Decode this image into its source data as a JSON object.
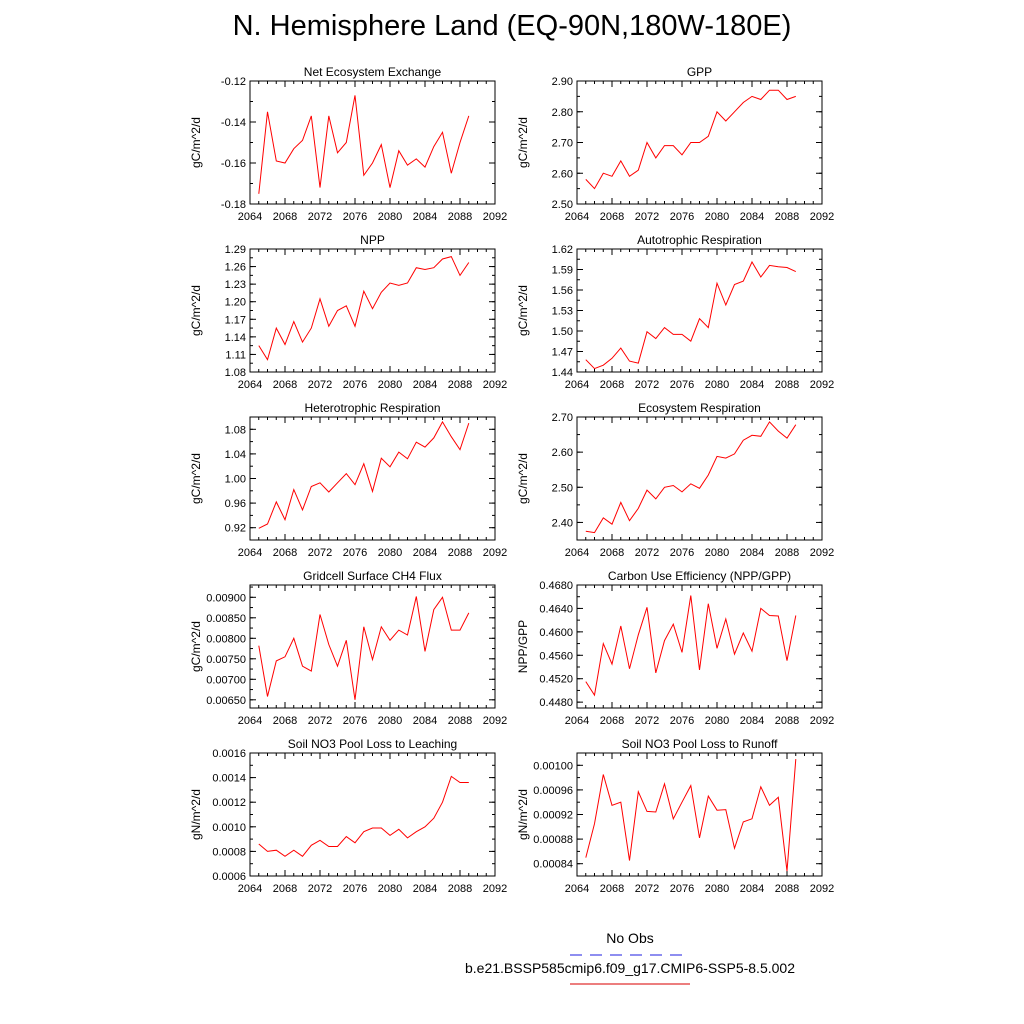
{
  "title": "N. Hemisphere Land (EQ-90N,180W-180E)",
  "legend": {
    "obs_label": "No Obs",
    "obs_color": "#4a4ae8",
    "run_label": "b.e21.BSSP585cmip6.f09_g17.CMIP6-SSP5-8.5.002",
    "run_color": "#e03030"
  },
  "chart_data": [
    {
      "type": "line",
      "title": "Net Ecosystem Exchange",
      "ylabel": "gC/m^2/d",
      "xlim": [
        2064,
        2092
      ],
      "x_ticks": [
        "2064",
        "2068",
        "2072",
        "2076",
        "2080",
        "2084",
        "2088",
        "2092"
      ],
      "ylim": [
        -0.18,
        -0.12
      ],
      "y_ticks": [
        -0.18,
        -0.16,
        -0.14,
        -0.12
      ],
      "y_tick_labels": [
        "-0.18",
        "-0.16",
        "-0.14",
        "-0.12"
      ],
      "series": [
        {
          "color": "#ff0000",
          "x": [
            2065,
            2066,
            2067,
            2068,
            2069,
            2070,
            2071,
            2072,
            2073,
            2074,
            2075,
            2076,
            2077,
            2078,
            2079,
            2080,
            2081,
            2082,
            2083,
            2084,
            2085,
            2086,
            2087,
            2088,
            2089
          ],
          "values": [
            -0.175,
            -0.135,
            -0.159,
            -0.16,
            -0.153,
            -0.149,
            -0.137,
            -0.172,
            -0.137,
            -0.155,
            -0.15,
            -0.127,
            -0.166,
            -0.16,
            -0.151,
            -0.172,
            -0.154,
            -0.161,
            -0.158,
            -0.162,
            -0.152,
            -0.145,
            -0.165,
            -0.15,
            -0.137
          ]
        }
      ]
    },
    {
      "type": "line",
      "title": "GPP",
      "ylabel": "gC/m^2/d",
      "xlim": [
        2064,
        2092
      ],
      "x_ticks": [
        "2064",
        "2068",
        "2072",
        "2076",
        "2080",
        "2084",
        "2088",
        "2092"
      ],
      "ylim": [
        2.5,
        2.9
      ],
      "y_ticks": [
        2.5,
        2.6,
        2.7,
        2.8,
        2.9
      ],
      "y_tick_labels": [
        "2.50",
        "2.60",
        "2.70",
        "2.80",
        "2.90"
      ],
      "series": [
        {
          "color": "#ff0000",
          "x": [
            2065,
            2066,
            2067,
            2068,
            2069,
            2070,
            2071,
            2072,
            2073,
            2074,
            2075,
            2076,
            2077,
            2078,
            2079,
            2080,
            2081,
            2082,
            2083,
            2084,
            2085,
            2086,
            2087,
            2088,
            2089
          ],
          "values": [
            2.58,
            2.55,
            2.6,
            2.59,
            2.64,
            2.59,
            2.61,
            2.7,
            2.65,
            2.69,
            2.69,
            2.66,
            2.7,
            2.7,
            2.72,
            2.8,
            2.77,
            2.8,
            2.83,
            2.85,
            2.84,
            2.87,
            2.87,
            2.84,
            2.85
          ]
        }
      ]
    },
    {
      "type": "line",
      "title": "NPP",
      "ylabel": "gC/m^2/d",
      "xlim": [
        2064,
        2092
      ],
      "x_ticks": [
        "2064",
        "2068",
        "2072",
        "2076",
        "2080",
        "2084",
        "2088",
        "2092"
      ],
      "ylim": [
        1.08,
        1.29
      ],
      "y_ticks": [
        1.08,
        1.11,
        1.14,
        1.17,
        1.2,
        1.23,
        1.26,
        1.29
      ],
      "y_tick_labels": [
        "1.08",
        "1.11",
        "1.14",
        "1.17",
        "1.20",
        "1.23",
        "1.26",
        "1.29"
      ],
      "series": [
        {
          "color": "#ff0000",
          "x": [
            2065,
            2066,
            2067,
            2068,
            2069,
            2070,
            2071,
            2072,
            2073,
            2074,
            2075,
            2076,
            2077,
            2078,
            2079,
            2080,
            2081,
            2082,
            2083,
            2084,
            2085,
            2086,
            2087,
            2088,
            2089
          ],
          "values": [
            1.125,
            1.101,
            1.155,
            1.127,
            1.166,
            1.131,
            1.155,
            1.205,
            1.158,
            1.185,
            1.193,
            1.158,
            1.218,
            1.188,
            1.216,
            1.232,
            1.228,
            1.232,
            1.258,
            1.255,
            1.258,
            1.273,
            1.277,
            1.245,
            1.267
          ]
        }
      ]
    },
    {
      "type": "line",
      "title": "Autotrophic Respiration",
      "ylabel": "gC/m^2/d",
      "xlim": [
        2064,
        2092
      ],
      "x_ticks": [
        "2064",
        "2068",
        "2072",
        "2076",
        "2080",
        "2084",
        "2088",
        "2092"
      ],
      "ylim": [
        1.44,
        1.62
      ],
      "y_ticks": [
        1.44,
        1.47,
        1.5,
        1.53,
        1.56,
        1.59,
        1.62
      ],
      "y_tick_labels": [
        "1.44",
        "1.47",
        "1.50",
        "1.53",
        "1.56",
        "1.59",
        "1.62"
      ],
      "series": [
        {
          "color": "#ff0000",
          "x": [
            2065,
            2066,
            2067,
            2068,
            2069,
            2070,
            2071,
            2072,
            2073,
            2074,
            2075,
            2076,
            2077,
            2078,
            2079,
            2080,
            2081,
            2082,
            2083,
            2084,
            2085,
            2086,
            2087,
            2088,
            2089
          ],
          "values": [
            1.458,
            1.445,
            1.45,
            1.46,
            1.475,
            1.456,
            1.453,
            1.499,
            1.489,
            1.505,
            1.495,
            1.495,
            1.485,
            1.518,
            1.505,
            1.57,
            1.538,
            1.568,
            1.573,
            1.601,
            1.579,
            1.596,
            1.594,
            1.593,
            1.587
          ]
        }
      ]
    },
    {
      "type": "line",
      "title": "Heterotrophic Respiration",
      "ylabel": "gC/m^2/d",
      "xlim": [
        2064,
        2092
      ],
      "x_ticks": [
        "2064",
        "2068",
        "2072",
        "2076",
        "2080",
        "2084",
        "2088",
        "2092"
      ],
      "ylim": [
        0.9,
        1.1
      ],
      "y_ticks": [
        0.92,
        0.96,
        1.0,
        1.04,
        1.08
      ],
      "y_tick_labels": [
        "0.92",
        "0.96",
        "1.00",
        "1.04",
        "1.08"
      ],
      "series": [
        {
          "color": "#ff0000",
          "x": [
            2065,
            2066,
            2067,
            2068,
            2069,
            2070,
            2071,
            2072,
            2073,
            2074,
            2075,
            2076,
            2077,
            2078,
            2079,
            2080,
            2081,
            2082,
            2083,
            2084,
            2085,
            2086,
            2087,
            2088,
            2089
          ],
          "values": [
            0.919,
            0.926,
            0.962,
            0.933,
            0.982,
            0.949,
            0.987,
            0.993,
            0.978,
            0.993,
            1.008,
            0.99,
            1.024,
            0.979,
            1.033,
            1.019,
            1.043,
            1.032,
            1.059,
            1.051,
            1.066,
            1.092,
            1.068,
            1.047,
            1.09
          ]
        }
      ]
    },
    {
      "type": "line",
      "title": "Ecosystem Respiration",
      "ylabel": "gC/m^2/d",
      "xlim": [
        2064,
        2092
      ],
      "x_ticks": [
        "2064",
        "2068",
        "2072",
        "2076",
        "2080",
        "2084",
        "2088",
        "2092"
      ],
      "ylim": [
        2.35,
        2.7
      ],
      "y_ticks": [
        2.4,
        2.5,
        2.6,
        2.7
      ],
      "y_tick_labels": [
        "2.40",
        "2.50",
        "2.60",
        "2.70"
      ],
      "series": [
        {
          "color": "#ff0000",
          "x": [
            2065,
            2066,
            2067,
            2068,
            2069,
            2070,
            2071,
            2072,
            2073,
            2074,
            2075,
            2076,
            2077,
            2078,
            2079,
            2080,
            2081,
            2082,
            2083,
            2084,
            2085,
            2086,
            2087,
            2088,
            2089
          ],
          "values": [
            2.375,
            2.371,
            2.413,
            2.395,
            2.457,
            2.405,
            2.44,
            2.492,
            2.467,
            2.5,
            2.505,
            2.487,
            2.51,
            2.497,
            2.535,
            2.588,
            2.583,
            2.595,
            2.634,
            2.648,
            2.645,
            2.686,
            2.66,
            2.64,
            2.678
          ]
        }
      ]
    },
    {
      "type": "line",
      "title": "Gridcell Surface CH4 Flux",
      "ylabel": "gC/m^2/d",
      "xlim": [
        2064,
        2092
      ],
      "x_ticks": [
        "2064",
        "2068",
        "2072",
        "2076",
        "2080",
        "2084",
        "2088",
        "2092"
      ],
      "ylim": [
        0.0063,
        0.0093
      ],
      "y_ticks": [
        0.0065,
        0.007,
        0.0075,
        0.008,
        0.0085,
        0.009
      ],
      "y_tick_labels": [
        "0.00650",
        "0.00700",
        "0.00750",
        "0.00800",
        "0.00850",
        "0.00900"
      ],
      "series": [
        {
          "color": "#ff0000",
          "x": [
            2065,
            2066,
            2067,
            2068,
            2069,
            2070,
            2071,
            2072,
            2073,
            2074,
            2075,
            2076,
            2077,
            2078,
            2079,
            2080,
            2081,
            2082,
            2083,
            2084,
            2085,
            2086,
            2087,
            2088,
            2089
          ],
          "values": [
            0.00782,
            0.00658,
            0.00745,
            0.00755,
            0.008,
            0.00732,
            0.0072,
            0.00858,
            0.00785,
            0.00732,
            0.00795,
            0.0065,
            0.00828,
            0.00748,
            0.00828,
            0.00795,
            0.0082,
            0.00808,
            0.00902,
            0.00768,
            0.0087,
            0.009,
            0.0082,
            0.0082,
            0.00862
          ]
        }
      ]
    },
    {
      "type": "line",
      "title": "Carbon Use Efficiency (NPP/GPP)",
      "ylabel": "NPP/GPP",
      "xlim": [
        2064,
        2092
      ],
      "x_ticks": [
        "2064",
        "2068",
        "2072",
        "2076",
        "2080",
        "2084",
        "2088",
        "2092"
      ],
      "ylim": [
        0.447,
        0.468
      ],
      "y_ticks": [
        0.448,
        0.452,
        0.456,
        0.46,
        0.464,
        0.468
      ],
      "y_tick_labels": [
        "0.4480",
        "0.4520",
        "0.4560",
        "0.4600",
        "0.4640",
        "0.4680"
      ],
      "series": [
        {
          "color": "#ff0000",
          "x": [
            2065,
            2066,
            2067,
            2068,
            2069,
            2070,
            2071,
            2072,
            2073,
            2074,
            2075,
            2076,
            2077,
            2078,
            2079,
            2080,
            2081,
            2082,
            2083,
            2084,
            2085,
            2086,
            2087,
            2088,
            2089
          ],
          "values": [
            0.4515,
            0.4492,
            0.458,
            0.4545,
            0.461,
            0.4537,
            0.4595,
            0.4642,
            0.453,
            0.4585,
            0.4613,
            0.4565,
            0.4662,
            0.4535,
            0.4648,
            0.4572,
            0.4622,
            0.4562,
            0.4598,
            0.4567,
            0.464,
            0.4628,
            0.4627,
            0.4551,
            0.4628
          ]
        }
      ]
    },
    {
      "type": "line",
      "title": "Soil NO3 Pool Loss to Leaching",
      "ylabel": "gN/m^2/d",
      "xlim": [
        2064,
        2092
      ],
      "x_ticks": [
        "2064",
        "2068",
        "2072",
        "2076",
        "2080",
        "2084",
        "2088",
        "2092"
      ],
      "ylim": [
        0.0006,
        0.0016
      ],
      "y_ticks": [
        0.0006,
        0.0008,
        0.001,
        0.0012,
        0.0014,
        0.0016
      ],
      "y_tick_labels": [
        "0.0006",
        "0.0008",
        "0.0010",
        "0.0012",
        "0.0014",
        "0.0016"
      ],
      "series": [
        {
          "color": "#ff0000",
          "x": [
            2065,
            2066,
            2067,
            2068,
            2069,
            2070,
            2071,
            2072,
            2073,
            2074,
            2075,
            2076,
            2077,
            2078,
            2079,
            2080,
            2081,
            2082,
            2083,
            2084,
            2085,
            2086,
            2087,
            2088,
            2089
          ],
          "values": [
            0.00086,
            0.0008,
            0.00081,
            0.00076,
            0.00081,
            0.00076,
            0.00085,
            0.00089,
            0.00084,
            0.00084,
            0.00092,
            0.00087,
            0.00096,
            0.00099,
            0.00099,
            0.00093,
            0.00098,
            0.00091,
            0.00096,
            0.001,
            0.00107,
            0.0012,
            0.00141,
            0.00136,
            0.00136
          ]
        }
      ]
    },
    {
      "type": "line",
      "title": "Soil NO3 Pool Loss to Runoff",
      "ylabel": "gN/m^2/d",
      "xlim": [
        2064,
        2092
      ],
      "x_ticks": [
        "2064",
        "2068",
        "2072",
        "2076",
        "2080",
        "2084",
        "2088",
        "2092"
      ],
      "ylim": [
        0.00082,
        0.00102
      ],
      "y_ticks": [
        0.00084,
        0.00088,
        0.00092,
        0.00096,
        0.001
      ],
      "y_tick_labels": [
        "0.00084",
        "0.00088",
        "0.00092",
        "0.00096",
        "0.00100"
      ],
      "series": [
        {
          "color": "#ff0000",
          "x": [
            2065,
            2066,
            2067,
            2068,
            2069,
            2070,
            2071,
            2072,
            2073,
            2074,
            2075,
            2076,
            2077,
            2078,
            2079,
            2080,
            2081,
            2082,
            2083,
            2084,
            2085,
            2086,
            2087,
            2088,
            2089
          ],
          "values": [
            0.00085,
            0.000905,
            0.000985,
            0.000935,
            0.00094,
            0.000845,
            0.000957,
            0.000925,
            0.000924,
            0.00097,
            0.000913,
            0.00094,
            0.000967,
            0.000882,
            0.00095,
            0.000927,
            0.000928,
            0.000865,
            0.000908,
            0.000913,
            0.000965,
            0.000935,
            0.000948,
            0.000828,
            0.00101
          ]
        }
      ]
    }
  ]
}
